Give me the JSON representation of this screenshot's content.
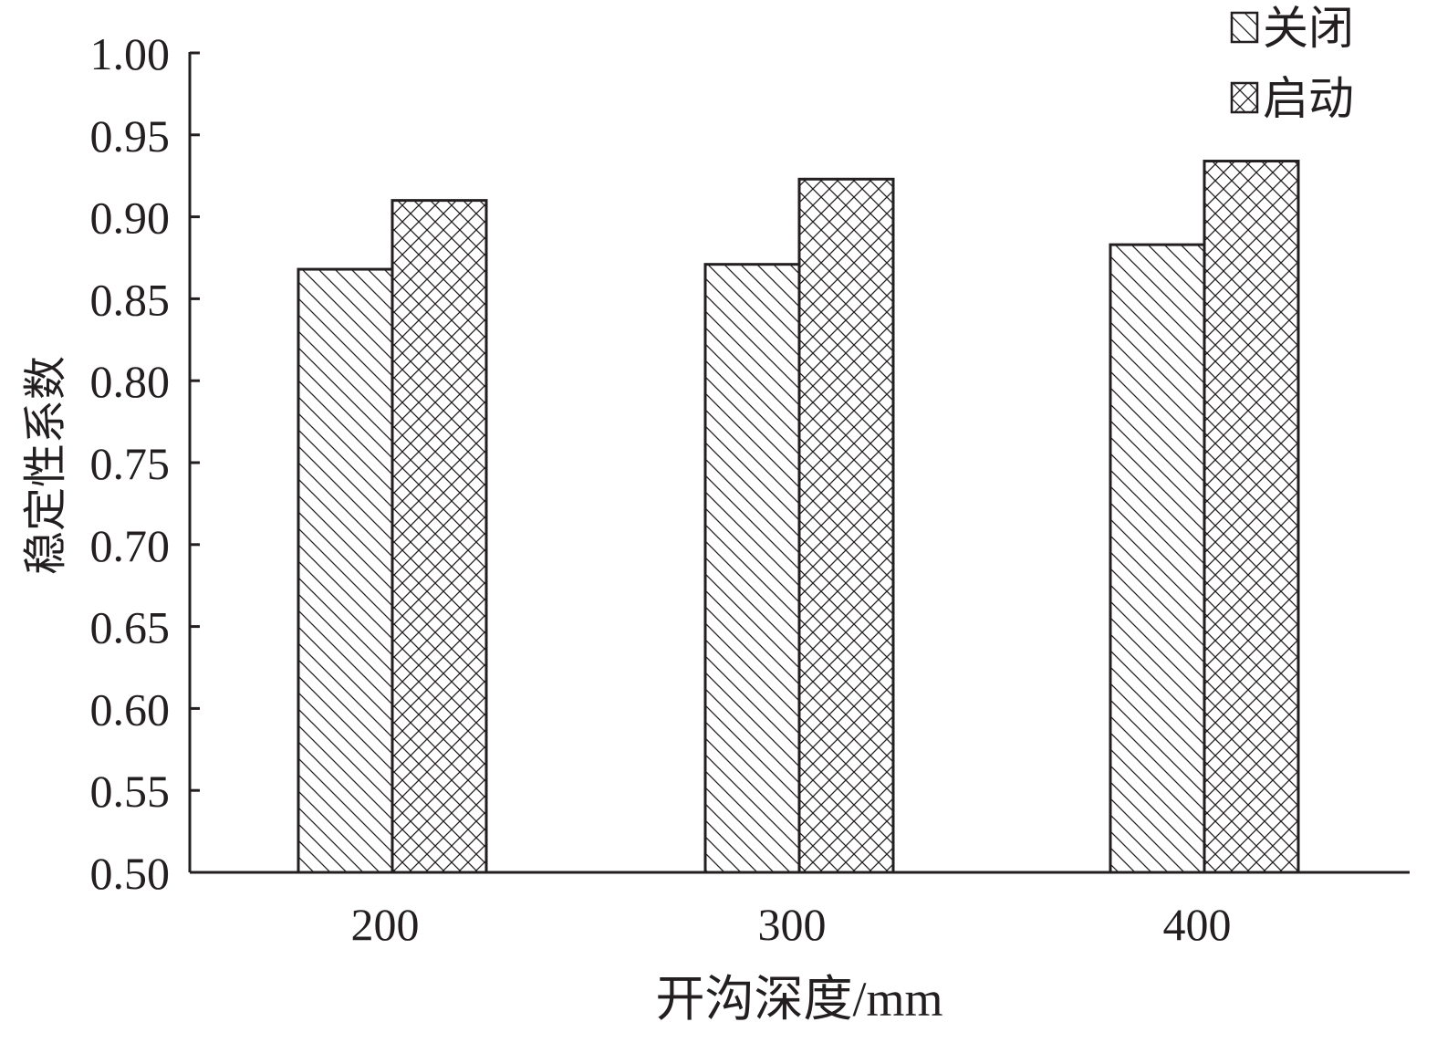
{
  "chart_data": {
    "type": "bar",
    "title": "",
    "xlabel": "开沟深度/mm",
    "ylabel": "稳定性系数",
    "categories": [
      "200",
      "300",
      "400"
    ],
    "series": [
      {
        "name": "关闭",
        "values": [
          0.868,
          0.871,
          0.883
        ],
        "pattern": "single-diagonal-hatch"
      },
      {
        "name": "启动",
        "values": [
          0.91,
          0.923,
          0.934
        ],
        "pattern": "cross-hatch"
      }
    ],
    "ylim": [
      0.5,
      1.0
    ],
    "yticks": [
      "0.50",
      "0.55",
      "0.60",
      "0.65",
      "0.70",
      "0.75",
      "0.80",
      "0.85",
      "0.90",
      "0.95",
      "1.00"
    ],
    "grid": false,
    "legend_position": "top-right",
    "colors": {
      "stroke": "#231f20",
      "background": "#ffffff"
    }
  }
}
